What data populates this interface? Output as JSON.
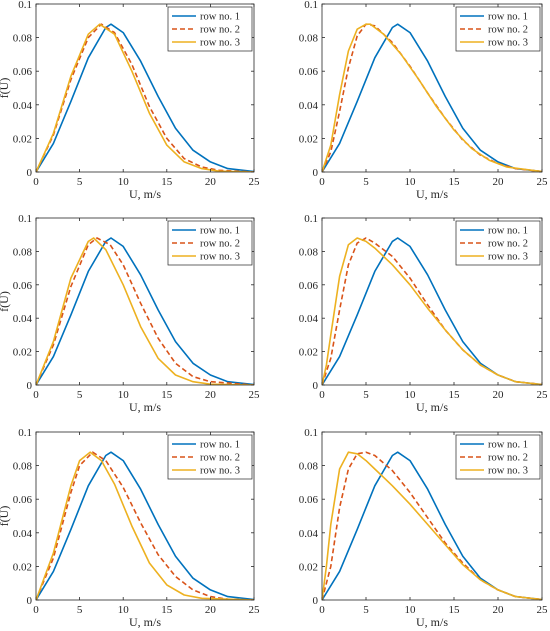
{
  "figure": {
    "colors": {
      "row1": "#0072BD",
      "row2": "#D95319",
      "row3": "#EDB120"
    },
    "styles": {
      "row1": "solid",
      "row2": "dashed",
      "row3": "solid"
    }
  },
  "chart_data": [
    {
      "type": "line",
      "xlabel": "U, m/s",
      "ylabel": "f(U)",
      "xlim": [
        0,
        25
      ],
      "ylim": [
        0,
        0.1
      ],
      "xticks": [
        "0",
        "5",
        "10",
        "15",
        "20",
        "25"
      ],
      "yticks": [
        "0",
        "0.02",
        "0.04",
        "0.06",
        "0.08",
        "0.1"
      ],
      "legend": "top-right",
      "grid": false,
      "series": [
        {
          "name": "row no. 1",
          "x": [
            0,
            2,
            4,
            6,
            8,
            8.6,
            10,
            12,
            14,
            16,
            18,
            20,
            22,
            25
          ],
          "y": [
            0,
            0.017,
            0.042,
            0.068,
            0.086,
            0.088,
            0.083,
            0.066,
            0.045,
            0.026,
            0.013,
            0.006,
            0.002,
            0.0003
          ]
        },
        {
          "name": "row no. 2",
          "x": [
            0,
            2,
            4,
            6,
            7.5,
            9,
            11,
            13,
            15,
            17,
            19,
            21,
            25
          ],
          "y": [
            0,
            0.022,
            0.055,
            0.08,
            0.088,
            0.083,
            0.064,
            0.039,
            0.02,
            0.008,
            0.003,
            0.001,
            0
          ]
        },
        {
          "name": "row no. 3",
          "x": [
            0,
            2,
            4,
            6,
            7.3,
            9,
            11,
            13,
            15,
            17,
            19,
            21,
            25
          ],
          "y": [
            0,
            0.023,
            0.057,
            0.082,
            0.088,
            0.082,
            0.06,
            0.035,
            0.016,
            0.006,
            0.002,
            0.0005,
            0
          ]
        }
      ]
    },
    {
      "type": "line",
      "xlabel": "U, m/s",
      "ylabel": "",
      "xlim": [
        0,
        25
      ],
      "ylim": [
        0,
        0.1
      ],
      "xticks": [
        "0",
        "5",
        "10",
        "15",
        "20",
        "25"
      ],
      "yticks": [
        "0",
        "0.02",
        "0.04",
        "0.06",
        "0.08",
        "0.1"
      ],
      "legend": "top-right",
      "grid": false,
      "series": [
        {
          "name": "row no. 1",
          "x": [
            0,
            2,
            4,
            6,
            8,
            8.6,
            10,
            12,
            14,
            16,
            18,
            20,
            22,
            25
          ],
          "y": [
            0,
            0.017,
            0.042,
            0.068,
            0.086,
            0.088,
            0.083,
            0.066,
            0.045,
            0.026,
            0.013,
            0.006,
            0.002,
            0.0003
          ]
        },
        {
          "name": "row no. 2",
          "x": [
            0,
            1,
            2,
            3,
            4,
            5,
            6,
            8,
            10,
            12,
            14,
            16,
            18,
            20,
            22,
            25
          ],
          "y": [
            0,
            0.012,
            0.036,
            0.062,
            0.081,
            0.088,
            0.087,
            0.077,
            0.063,
            0.047,
            0.032,
            0.019,
            0.01,
            0.005,
            0.002,
            0.0003
          ]
        },
        {
          "name": "row no. 3",
          "x": [
            0,
            1,
            2,
            3,
            4,
            5,
            5.5,
            7,
            9,
            11,
            13,
            15,
            17,
            19,
            21,
            25
          ],
          "y": [
            0,
            0.016,
            0.046,
            0.072,
            0.085,
            0.088,
            0.088,
            0.082,
            0.07,
            0.055,
            0.039,
            0.025,
            0.014,
            0.007,
            0.003,
            0.0003
          ]
        }
      ]
    },
    {
      "type": "line",
      "xlabel": "U, m/s",
      "ylabel": "f(U)",
      "xlim": [
        0,
        25
      ],
      "ylim": [
        0,
        0.1
      ],
      "xticks": [
        "0",
        "5",
        "10",
        "15",
        "20",
        "25"
      ],
      "yticks": [
        "0",
        "0.02",
        "0.04",
        "0.06",
        "0.08",
        "0.1"
      ],
      "legend": "top-right",
      "grid": false,
      "series": [
        {
          "name": "row no. 1",
          "x": [
            0,
            2,
            4,
            6,
            8,
            8.6,
            10,
            12,
            14,
            16,
            18,
            20,
            22,
            25
          ],
          "y": [
            0,
            0.017,
            0.042,
            0.068,
            0.086,
            0.088,
            0.083,
            0.066,
            0.045,
            0.026,
            0.013,
            0.006,
            0.002,
            0.0003
          ]
        },
        {
          "name": "row no. 2",
          "x": [
            0,
            2,
            4,
            6,
            7,
            8.5,
            10,
            12,
            14,
            16,
            18,
            20,
            25
          ],
          "y": [
            0,
            0.024,
            0.059,
            0.084,
            0.088,
            0.084,
            0.072,
            0.049,
            0.028,
            0.013,
            0.005,
            0.002,
            0
          ]
        },
        {
          "name": "row no. 3",
          "x": [
            0,
            2,
            4,
            6,
            6.6,
            8,
            10,
            12,
            14,
            16,
            18,
            20,
            25
          ],
          "y": [
            0,
            0.026,
            0.064,
            0.086,
            0.088,
            0.081,
            0.06,
            0.035,
            0.016,
            0.006,
            0.002,
            0.0005,
            0
          ]
        }
      ]
    },
    {
      "type": "line",
      "xlabel": "U, m/s",
      "ylabel": "",
      "xlim": [
        0,
        25
      ],
      "ylim": [
        0,
        0.1
      ],
      "xticks": [
        "0",
        "5",
        "10",
        "15",
        "20",
        "25"
      ],
      "yticks": [
        "0",
        "0.02",
        "0.04",
        "0.06",
        "0.08",
        "0.1"
      ],
      "legend": "top-right",
      "grid": false,
      "series": [
        {
          "name": "row no. 1",
          "x": [
            0,
            2,
            4,
            6,
            8,
            8.6,
            10,
            12,
            14,
            16,
            18,
            20,
            22,
            25
          ],
          "y": [
            0,
            0.017,
            0.042,
            0.068,
            0.086,
            0.088,
            0.083,
            0.066,
            0.045,
            0.026,
            0.013,
            0.006,
            0.002,
            0.0003
          ]
        },
        {
          "name": "row no. 2",
          "x": [
            0,
            1,
            2,
            3,
            4,
            5,
            6,
            8,
            10,
            12,
            14,
            16,
            18,
            20,
            22,
            25
          ],
          "y": [
            0,
            0.016,
            0.045,
            0.072,
            0.085,
            0.088,
            0.085,
            0.077,
            0.064,
            0.048,
            0.033,
            0.021,
            0.012,
            0.006,
            0.002,
            0.0003
          ]
        },
        {
          "name": "row no. 3",
          "x": [
            0,
            0.5,
            1,
            2,
            3,
            4,
            5,
            6,
            8,
            10,
            12,
            14,
            16,
            18,
            20,
            22,
            25
          ],
          "y": [
            0,
            0.012,
            0.03,
            0.065,
            0.084,
            0.088,
            0.086,
            0.082,
            0.072,
            0.06,
            0.046,
            0.033,
            0.021,
            0.012,
            0.006,
            0.002,
            0.0003
          ]
        }
      ]
    },
    {
      "type": "line",
      "xlabel": "U, m/s",
      "ylabel": "f(U)",
      "xlim": [
        0,
        25
      ],
      "ylim": [
        0,
        0.1
      ],
      "xticks": [
        "0",
        "5",
        "10",
        "15",
        "20",
        "25"
      ],
      "yticks": [
        "0",
        "0.02",
        "0.04",
        "0.06",
        "0.08",
        "0.1"
      ],
      "legend": "top-right",
      "grid": false,
      "series": [
        {
          "name": "row no. 1",
          "x": [
            0,
            2,
            4,
            6,
            8,
            8.6,
            10,
            12,
            14,
            16,
            18,
            20,
            22,
            25
          ],
          "y": [
            0,
            0.017,
            0.042,
            0.068,
            0.086,
            0.088,
            0.083,
            0.066,
            0.045,
            0.026,
            0.013,
            0.006,
            0.002,
            0.0003
          ]
        },
        {
          "name": "row no. 2",
          "x": [
            0,
            2,
            4,
            5,
            6.5,
            8,
            10,
            12,
            14,
            16,
            18,
            20,
            22,
            25
          ],
          "y": [
            0,
            0.025,
            0.064,
            0.08,
            0.088,
            0.083,
            0.067,
            0.046,
            0.027,
            0.014,
            0.006,
            0.002,
            0.0005,
            0
          ]
        },
        {
          "name": "row no. 3",
          "x": [
            0,
            2,
            4,
            5,
            6.2,
            7.5,
            9,
            11,
            13,
            15,
            17,
            19,
            25
          ],
          "y": [
            0,
            0.028,
            0.068,
            0.083,
            0.088,
            0.083,
            0.069,
            0.044,
            0.022,
            0.009,
            0.003,
            0.001,
            0
          ]
        }
      ]
    },
    {
      "type": "line",
      "xlabel": "U, m/s",
      "ylabel": "",
      "xlim": [
        0,
        25
      ],
      "ylim": [
        0,
        0.1
      ],
      "xticks": [
        "0",
        "5",
        "10",
        "15",
        "20",
        "25"
      ],
      "yticks": [
        "0",
        "0.02",
        "0.04",
        "0.06",
        "0.08",
        "0.1"
      ],
      "legend": "top-right",
      "grid": false,
      "series": [
        {
          "name": "row no. 1",
          "x": [
            0,
            2,
            4,
            6,
            8,
            8.6,
            10,
            12,
            14,
            16,
            18,
            20,
            22,
            25
          ],
          "y": [
            0,
            0.017,
            0.042,
            0.068,
            0.086,
            0.088,
            0.083,
            0.066,
            0.045,
            0.026,
            0.013,
            0.006,
            0.002,
            0.0003
          ]
        },
        {
          "name": "row no. 2",
          "x": [
            0,
            1,
            2,
            3,
            4,
            5,
            6,
            8,
            10,
            12,
            14,
            16,
            18,
            20,
            22,
            25
          ],
          "y": [
            0,
            0.02,
            0.055,
            0.078,
            0.087,
            0.088,
            0.086,
            0.077,
            0.064,
            0.049,
            0.034,
            0.022,
            0.012,
            0.006,
            0.002,
            0.0003
          ]
        },
        {
          "name": "row no. 3",
          "x": [
            0,
            0.5,
            1,
            2,
            3,
            4,
            5,
            6,
            8,
            10,
            12,
            14,
            16,
            18,
            20,
            22,
            25
          ],
          "y": [
            0,
            0.02,
            0.045,
            0.078,
            0.088,
            0.087,
            0.083,
            0.078,
            0.068,
            0.057,
            0.045,
            0.033,
            0.021,
            0.012,
            0.006,
            0.002,
            0.0003
          ]
        }
      ]
    }
  ]
}
